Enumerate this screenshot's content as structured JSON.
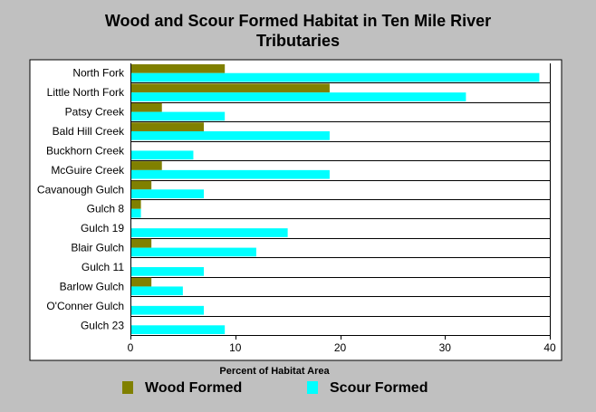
{
  "chart_data": {
    "type": "bar",
    "orientation": "horizontal",
    "title_lines": [
      "Wood and Scour Formed Habitat in Ten Mile River",
      "Tributaries"
    ],
    "xlabel": "Percent of Habitat Area",
    "ylabel": "",
    "xlim": [
      0,
      40
    ],
    "xticks": [
      0,
      10,
      20,
      30,
      40
    ],
    "grid": "horizontal",
    "legend_position": "bottom",
    "categories": [
      "North Fork",
      "Little North Fork",
      "Patsy Creek",
      "Bald Hill Creek",
      "Buckhorn Creek",
      "McGuire Creek",
      "Cavanough Gulch",
      "Gulch 8",
      "Gulch 19",
      "Blair Gulch",
      "Gulch 11",
      "Barlow Gulch",
      "O'Conner Gulch",
      "Gulch 23"
    ],
    "series": [
      {
        "name": "Wood Formed",
        "color": "#808000",
        "values": [
          9,
          19,
          3,
          7,
          0,
          3,
          2,
          1,
          0,
          2,
          0,
          2,
          0,
          0
        ]
      },
      {
        "name": "Scour Formed",
        "color": "#00ffff",
        "values": [
          39,
          32,
          9,
          19,
          6,
          19,
          7,
          1,
          15,
          12,
          7,
          5,
          7,
          9
        ]
      }
    ]
  },
  "colors": {
    "background": "#c0c0c0",
    "plot_background": "#ffffff"
  }
}
